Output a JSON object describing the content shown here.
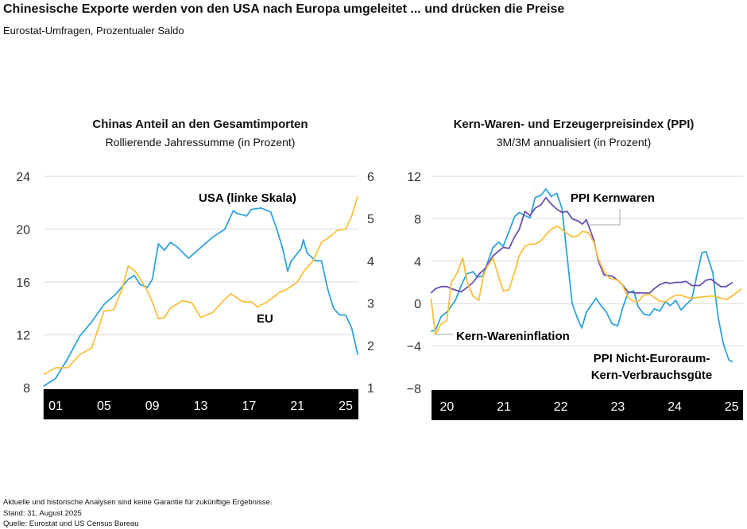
{
  "title": "Chinesische Exporte werden von den USA nach Europa umgeleitet ... und drücken die Preise",
  "subtitle": "Eurostat-Umfragen, Prozentualer Saldo",
  "footer": {
    "disclaimer": "Aktuelle und historische Analysen sind keine Garantie für zukünftige Ergebnisse.",
    "date": "Stand: 31. August 2025",
    "source": "Quelle: Eurostat und US Census Bureau"
  },
  "colors": {
    "blue": "#2ea3dc",
    "yellow": "#fbbf3a",
    "purple": "#6a4fb0",
    "band": "#000000",
    "grid": "#e6e6e6"
  },
  "chart_data": [
    {
      "type": "line",
      "title": "Chinas Anteil an den Gesamtimporten",
      "subtitle": "Rollierende Jahressumme (in Prozent)",
      "xlim": [
        2000,
        2026.05
      ],
      "x_ticks": [
        2001,
        2005,
        2009,
        2013,
        2017,
        2021,
        2025
      ],
      "x_tick_labels": [
        "01",
        "05",
        "09",
        "13",
        "17",
        "21",
        "25"
      ],
      "ylim_left": [
        8,
        24
      ],
      "y_ticks_left": [
        8,
        12,
        16,
        20,
        24
      ],
      "ylim_right": [
        1,
        6
      ],
      "y_ticks_right": [
        1,
        2,
        3,
        4,
        5,
        6
      ],
      "grid": true,
      "series": [
        {
          "name": "USA (linke Skala)",
          "axis": "left",
          "color": "#2ea3dc",
          "points": [
            [
              2000,
              8.1
            ],
            [
              2001,
              8.7
            ],
            [
              2002,
              10.2
            ],
            [
              2003,
              11.9
            ],
            [
              2004,
              13.0
            ],
            [
              2005,
              14.3
            ],
            [
              2006,
              15.1
            ],
            [
              2007,
              16.2
            ],
            [
              2007.5,
              16.5
            ],
            [
              2008,
              15.8
            ],
            [
              2008.6,
              15.6
            ],
            [
              2009,
              16.2
            ],
            [
              2009.5,
              18.9
            ],
            [
              2010,
              18.4
            ],
            [
              2010.5,
              19.0
            ],
            [
              2011,
              18.7
            ],
            [
              2012,
              17.8
            ],
            [
              2013,
              18.6
            ],
            [
              2014,
              19.4
            ],
            [
              2015,
              20.0
            ],
            [
              2015.7,
              21.4
            ],
            [
              2016,
              21.2
            ],
            [
              2016.8,
              21.0
            ],
            [
              2017.2,
              21.5
            ],
            [
              2018,
              21.6
            ],
            [
              2018.8,
              21.3
            ],
            [
              2019.3,
              20.0
            ],
            [
              2019.8,
              18.5
            ],
            [
              2020.2,
              16.8
            ],
            [
              2020.5,
              17.6
            ],
            [
              2021.3,
              18.5
            ],
            [
              2021.5,
              19.2
            ],
            [
              2021.8,
              18.2
            ],
            [
              2022.5,
              17.6
            ],
            [
              2023,
              17.6
            ],
            [
              2023.5,
              15.5
            ],
            [
              2024,
              14.0
            ],
            [
              2024.5,
              13.5
            ],
            [
              2025,
              13.5
            ],
            [
              2025.5,
              12.5
            ],
            [
              2026,
              10.5
            ]
          ]
        },
        {
          "name": "EU",
          "axis": "right",
          "color": "#fbbf3a",
          "points": [
            [
              2000,
              1.31
            ],
            [
              2001,
              1.47
            ],
            [
              2002,
              1.47
            ],
            [
              2003,
              1.78
            ],
            [
              2004,
              1.94
            ],
            [
              2005,
              2.81
            ],
            [
              2005.8,
              2.84
            ],
            [
              2006.5,
              3.34
            ],
            [
              2007,
              3.88
            ],
            [
              2007.6,
              3.75
            ],
            [
              2008.5,
              3.34
            ],
            [
              2009,
              3.03
            ],
            [
              2009.5,
              2.63
            ],
            [
              2010,
              2.66
            ],
            [
              2010.5,
              2.88
            ],
            [
              2011.5,
              3.06
            ],
            [
              2012.3,
              3.0
            ],
            [
              2013,
              2.66
            ],
            [
              2014,
              2.78
            ],
            [
              2015,
              3.09
            ],
            [
              2015.5,
              3.22
            ],
            [
              2016.5,
              3.03
            ],
            [
              2017.2,
              3.03
            ],
            [
              2017.7,
              2.91
            ],
            [
              2018.5,
              3.03
            ],
            [
              2019.5,
              3.25
            ],
            [
              2020.2,
              3.34
            ],
            [
              2021,
              3.5
            ],
            [
              2021.6,
              3.78
            ],
            [
              2022.3,
              4.0
            ],
            [
              2023,
              4.44
            ],
            [
              2023.5,
              4.53
            ],
            [
              2024.3,
              4.72
            ],
            [
              2025,
              4.75
            ],
            [
              2025.5,
              5.06
            ],
            [
              2026,
              5.53
            ]
          ]
        }
      ]
    },
    {
      "type": "line",
      "title": "Kern-Waren- und Erzeugerpreisindex (PPI)",
      "subtitle": "3M/3M annualisiert (in Prozent)",
      "xlim": [
        2019.73,
        2025.2
      ],
      "x_ticks": [
        2020,
        2021,
        2022,
        2023,
        2024,
        2025
      ],
      "x_tick_labels": [
        "20",
        "21",
        "22",
        "23",
        "24",
        "25"
      ],
      "ylim": [
        -8,
        12
      ],
      "y_ticks": [
        -8,
        -4,
        0,
        4,
        8,
        12
      ],
      "y_tick_labels": [
        "−8",
        "−4",
        "0",
        "4",
        "8",
        "12"
      ],
      "grid": true,
      "series": [
        {
          "name": "PPI Nicht-Euroraum-Kern-Verbrauchsgüte",
          "label_lines": [
            "PPI Nicht-Euroraum-",
            "Kern-Verbrauchsgüte"
          ],
          "color": "#2ea3dc",
          "points": [
            [
              2019.72,
              -2.6
            ],
            [
              2019.8,
              -2.5
            ],
            [
              2019.9,
              -1.2
            ],
            [
              2020.0,
              -0.8
            ],
            [
              2020.15,
              0.3
            ],
            [
              2020.25,
              1.7
            ],
            [
              2020.35,
              2.8
            ],
            [
              2020.46,
              3.0
            ],
            [
              2020.53,
              2.5
            ],
            [
              2020.63,
              2.6
            ],
            [
              2020.81,
              5.3
            ],
            [
              2020.91,
              5.8
            ],
            [
              2020.99,
              5.4
            ],
            [
              2021.19,
              8.2
            ],
            [
              2021.27,
              8.6
            ],
            [
              2021.37,
              8.3
            ],
            [
              2021.46,
              8.1
            ],
            [
              2021.55,
              10.0
            ],
            [
              2021.65,
              10.2
            ],
            [
              2021.74,
              10.8
            ],
            [
              2021.83,
              10.1
            ],
            [
              2021.93,
              10.4
            ],
            [
              2022.02,
              9.0
            ],
            [
              2022.11,
              4.5
            ],
            [
              2022.2,
              0.0
            ],
            [
              2022.3,
              -1.5
            ],
            [
              2022.37,
              -2.3
            ],
            [
              2022.45,
              -0.8
            ],
            [
              2022.62,
              0.5
            ],
            [
              2022.72,
              -0.3
            ],
            [
              2022.8,
              -0.8
            ],
            [
              2022.9,
              -1.9
            ],
            [
              2023.0,
              -2.1
            ],
            [
              2023.08,
              -0.5
            ],
            [
              2023.18,
              1.0
            ],
            [
              2023.28,
              1.2
            ],
            [
              2023.36,
              -0.3
            ],
            [
              2023.46,
              -1.0
            ],
            [
              2023.56,
              -1.1
            ],
            [
              2023.64,
              -0.5
            ],
            [
              2023.74,
              -0.7
            ],
            [
              2023.84,
              0.2
            ],
            [
              2023.92,
              -0.2
            ],
            [
              2024.02,
              0.3
            ],
            [
              2024.11,
              -0.6
            ],
            [
              2024.2,
              -0.1
            ],
            [
              2024.3,
              0.4
            ],
            [
              2024.39,
              2.7
            ],
            [
              2024.48,
              4.8
            ],
            [
              2024.55,
              4.9
            ],
            [
              2024.67,
              2.9
            ],
            [
              2024.76,
              -1.2
            ],
            [
              2024.85,
              -3.7
            ],
            [
              2024.95,
              -5.3
            ],
            [
              2025.02,
              -5.5
            ]
          ]
        },
        {
          "name": "PPI Kernwaren",
          "color": "#6a4fb0",
          "points": [
            [
              2019.72,
              1.0
            ],
            [
              2019.8,
              1.4
            ],
            [
              2019.9,
              1.6
            ],
            [
              2020.0,
              1.6
            ],
            [
              2020.08,
              1.4
            ],
            [
              2020.25,
              1.1
            ],
            [
              2020.35,
              1.5
            ],
            [
              2020.46,
              2.0
            ],
            [
              2020.57,
              2.8
            ],
            [
              2020.67,
              3.3
            ],
            [
              2020.81,
              4.5
            ],
            [
              2020.99,
              5.3
            ],
            [
              2021.09,
              5.2
            ],
            [
              2021.19,
              6.3
            ],
            [
              2021.27,
              7.0
            ],
            [
              2021.37,
              8.7
            ],
            [
              2021.46,
              8.3
            ],
            [
              2021.55,
              9.0
            ],
            [
              2021.65,
              9.3
            ],
            [
              2021.74,
              10.0
            ],
            [
              2021.83,
              9.4
            ],
            [
              2021.93,
              8.9
            ],
            [
              2022.02,
              8.6
            ],
            [
              2022.11,
              8.7
            ],
            [
              2022.2,
              8.0
            ],
            [
              2022.3,
              7.8
            ],
            [
              2022.38,
              7.5
            ],
            [
              2022.45,
              7.9
            ],
            [
              2022.58,
              6.0
            ],
            [
              2022.66,
              4.0
            ],
            [
              2022.76,
              2.7
            ],
            [
              2022.9,
              2.6
            ],
            [
              2023.0,
              2.2
            ],
            [
              2023.08,
              1.8
            ],
            [
              2023.18,
              1.1
            ],
            [
              2023.32,
              1.0
            ],
            [
              2023.56,
              1.0
            ],
            [
              2023.64,
              1.4
            ],
            [
              2023.74,
              1.8
            ],
            [
              2023.84,
              2.0
            ],
            [
              2023.92,
              1.9
            ],
            [
              2024.02,
              2.0
            ],
            [
              2024.11,
              2.0
            ],
            [
              2024.2,
              2.1
            ],
            [
              2024.3,
              1.7
            ],
            [
              2024.44,
              1.7
            ],
            [
              2024.55,
              2.2
            ],
            [
              2024.64,
              2.3
            ],
            [
              2024.71,
              2.0
            ],
            [
              2024.81,
              1.6
            ],
            [
              2024.9,
              1.6
            ],
            [
              2025.02,
              2.0
            ]
          ]
        },
        {
          "name": "Kern-Wareninflation",
          "color": "#fbbf3a",
          "points": [
            [
              2019.72,
              0.5
            ],
            [
              2019.8,
              -2.9
            ],
            [
              2019.9,
              -1.9
            ],
            [
              2020.0,
              -1.6
            ],
            [
              2020.08,
              2.0
            ],
            [
              2020.18,
              2.9
            ],
            [
              2020.28,
              4.3
            ],
            [
              2020.36,
              2.0
            ],
            [
              2020.46,
              0.7
            ],
            [
              2020.56,
              0.3
            ],
            [
              2020.64,
              2.6
            ],
            [
              2020.71,
              3.5
            ],
            [
              2020.81,
              4.3
            ],
            [
              2020.91,
              2.5
            ],
            [
              2020.99,
              1.2
            ],
            [
              2021.09,
              1.3
            ],
            [
              2021.19,
              3.0
            ],
            [
              2021.27,
              4.5
            ],
            [
              2021.37,
              5.4
            ],
            [
              2021.46,
              5.6
            ],
            [
              2021.55,
              5.6
            ],
            [
              2021.65,
              5.9
            ],
            [
              2021.74,
              6.5
            ],
            [
              2021.83,
              7.0
            ],
            [
              2021.93,
              7.3
            ],
            [
              2022.02,
              7.0
            ],
            [
              2022.11,
              6.6
            ],
            [
              2022.2,
              6.3
            ],
            [
              2022.3,
              6.4
            ],
            [
              2022.38,
              6.8
            ],
            [
              2022.48,
              6.7
            ],
            [
              2022.58,
              5.8
            ],
            [
              2022.66,
              4.2
            ],
            [
              2022.76,
              3.0
            ],
            [
              2022.86,
              2.4
            ],
            [
              2023.0,
              2.2
            ],
            [
              2023.08,
              1.8
            ],
            [
              2023.18,
              0.6
            ],
            [
              2023.28,
              0.2
            ],
            [
              2023.36,
              0.2
            ],
            [
              2023.46,
              0.8
            ],
            [
              2023.56,
              0.9
            ],
            [
              2023.64,
              0.6
            ],
            [
              2023.74,
              0.2
            ],
            [
              2023.84,
              0.2
            ],
            [
              2023.92,
              0.5
            ],
            [
              2024.02,
              0.8
            ],
            [
              2024.11,
              0.8
            ],
            [
              2024.2,
              0.6
            ],
            [
              2024.3,
              0.5
            ],
            [
              2024.44,
              0.6
            ],
            [
              2024.62,
              0.7
            ],
            [
              2024.71,
              0.7
            ],
            [
              2024.81,
              0.5
            ],
            [
              2024.92,
              0.4
            ],
            [
              2025.03,
              0.8
            ],
            [
              2025.17,
              1.4
            ]
          ]
        }
      ]
    }
  ]
}
